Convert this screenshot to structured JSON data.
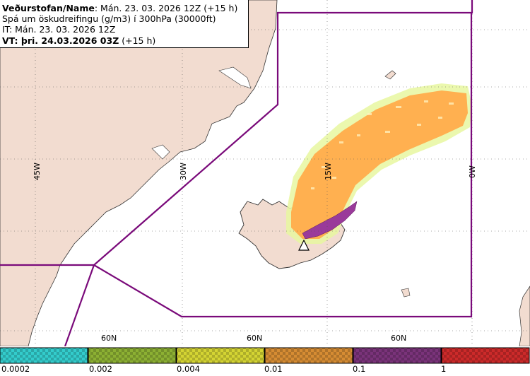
{
  "header": {
    "org_label": "Veðurstofan/Name",
    "org_value": ": Mán. 23. 03. 2026 12Z (+15 h)",
    "product": "Spá um öskudreifingu (g/m3) í 300hPa (30000ft)",
    "issue_time": "IT: Mán. 23. 03. 2026 12Z",
    "valid_label": "VT: þri. 24.03.2026 03Z",
    "valid_suffix": " (+15 h)"
  },
  "map": {
    "meridians": [
      "45W",
      "30W",
      "15W",
      "0W"
    ],
    "parallels": [
      "60N",
      "60N",
      "60N"
    ],
    "colors": {
      "land": "#f2dcd0",
      "sea": "#ffffff",
      "fir_boundary": "#7a0a7a",
      "ash_orange": "#ffb050",
      "ash_purple": "#9a3a9a"
    },
    "volcano_marker": "triangle-icon"
  },
  "legend": {
    "ticks": [
      "0.0002",
      "0.002",
      "0.004",
      "0.01",
      "0.1",
      "1"
    ],
    "colors": [
      "#33cccc",
      "#8cb033",
      "#d4d433",
      "#d68c33",
      "#7a337a",
      "#cc2a2a"
    ]
  }
}
